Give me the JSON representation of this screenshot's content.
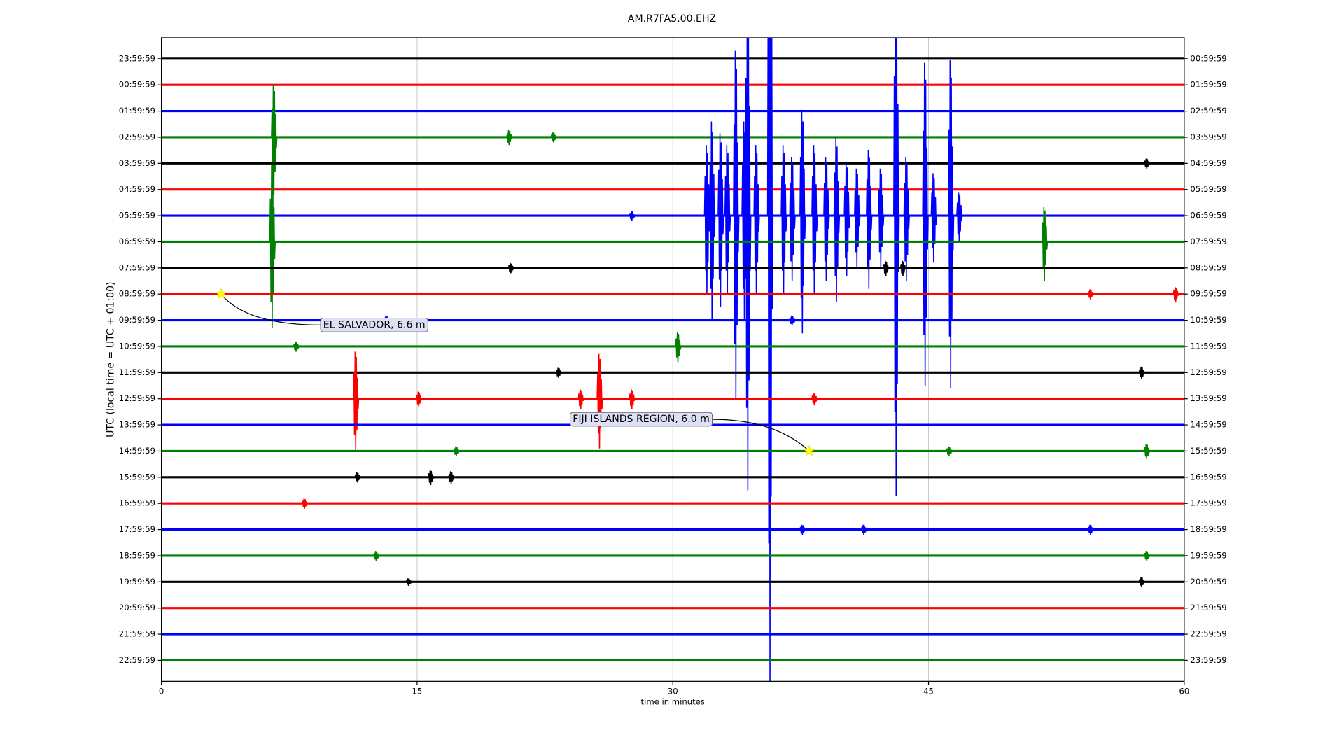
{
  "chart_data": {
    "type": "dayplot",
    "title": "AM.R7FA5.00.EHZ",
    "xlabel": "time in minutes",
    "ylabel": "UTC (local time = UTC + 01:00)",
    "xlim": [
      0,
      60
    ],
    "xticks": [
      0,
      15,
      30,
      45,
      60
    ],
    "grid": true,
    "ylim": [
      -0.8,
      23.8
    ],
    "yticks": [
      {
        "value": 0,
        "label": "23:59:59"
      },
      {
        "value": 1,
        "label": "00:59:59"
      },
      {
        "value": 2,
        "label": "01:59:59"
      },
      {
        "value": 3,
        "label": "02:59:59"
      },
      {
        "value": 4,
        "label": "03:59:59"
      },
      {
        "value": 5,
        "label": "04:59:59"
      },
      {
        "value": 6,
        "label": "05:59:59"
      },
      {
        "value": 7,
        "label": "06:59:59"
      },
      {
        "value": 8,
        "label": "07:59:59"
      },
      {
        "value": 9,
        "label": "08:59:59"
      },
      {
        "value": 10,
        "label": "09:59:59"
      },
      {
        "value": 11,
        "label": "10:59:59"
      },
      {
        "value": 12,
        "label": "11:59:59"
      },
      {
        "value": 13,
        "label": "12:59:59"
      },
      {
        "value": 14,
        "label": "13:59:59"
      },
      {
        "value": 15,
        "label": "14:59:59"
      },
      {
        "value": 16,
        "label": "15:59:59"
      },
      {
        "value": 17,
        "label": "16:59:59"
      },
      {
        "value": 18,
        "label": "17:59:59"
      },
      {
        "value": 19,
        "label": "18:59:59"
      },
      {
        "value": 20,
        "label": "19:59:59"
      },
      {
        "value": 21,
        "label": "20:59:59"
      },
      {
        "value": 22,
        "label": "21:59:59"
      },
      {
        "value": 23,
        "label": "22:59:59"
      }
    ],
    "y2ticks": [
      {
        "value": 0,
        "label": "00:59:59"
      },
      {
        "value": 1,
        "label": "01:59:59"
      },
      {
        "value": 2,
        "label": "02:59:59"
      },
      {
        "value": 3,
        "label": "03:59:59"
      },
      {
        "value": 4,
        "label": "04:59:59"
      },
      {
        "value": 5,
        "label": "05:59:59"
      },
      {
        "value": 6,
        "label": "06:59:59"
      },
      {
        "value": 7,
        "label": "07:59:59"
      },
      {
        "value": 8,
        "label": "08:59:59"
      },
      {
        "value": 9,
        "label": "09:59:59"
      },
      {
        "value": 10,
        "label": "10:59:59"
      },
      {
        "value": 11,
        "label": "11:59:59"
      },
      {
        "value": 12,
        "label": "12:59:59"
      },
      {
        "value": 13,
        "label": "13:59:59"
      },
      {
        "value": 14,
        "label": "14:59:59"
      },
      {
        "value": 15,
        "label": "15:59:59"
      },
      {
        "value": 16,
        "label": "16:59:59"
      },
      {
        "value": 17,
        "label": "17:59:59"
      },
      {
        "value": 18,
        "label": "18:59:59"
      },
      {
        "value": 19,
        "label": "19:59:59"
      },
      {
        "value": 20,
        "label": "20:59:59"
      },
      {
        "value": 21,
        "label": "21:59:59"
      },
      {
        "value": 22,
        "label": "22:59:59"
      },
      {
        "value": 23,
        "label": "23:59:59"
      }
    ],
    "rows": [
      {
        "color": "#000000",
        "spikes": []
      },
      {
        "color": "#ff0000",
        "spikes": []
      },
      {
        "color": "#0000ff",
        "spikes": []
      },
      {
        "color": "#008000",
        "spikes": [
          {
            "minute": 6.6,
            "amplitude": 2.2
          },
          {
            "minute": 20.4,
            "amplitude": 0.3
          },
          {
            "minute": 23.0,
            "amplitude": 0.2
          }
        ]
      },
      {
        "color": "#000000",
        "spikes": [
          {
            "minute": 57.8,
            "amplitude": 0.2
          }
        ]
      },
      {
        "color": "#ff0000",
        "spikes": []
      },
      {
        "color": "#0000ff",
        "spikes": [
          {
            "minute": 27.6,
            "amplitude": 0.2
          },
          {
            "minute": 32.0,
            "amplitude": 3
          },
          {
            "minute": 32.3,
            "amplitude": 4
          },
          {
            "minute": 32.8,
            "amplitude": 3.5
          },
          {
            "minute": 33.2,
            "amplitude": 3
          },
          {
            "minute": 33.7,
            "amplitude": 7
          },
          {
            "minute": 34.2,
            "amplitude": 4
          },
          {
            "minute": 34.4,
            "amplitude": 10.5
          },
          {
            "minute": 34.9,
            "amplitude": 3
          },
          {
            "minute": 35.7,
            "amplitude": 17.9
          },
          {
            "minute": 36.5,
            "amplitude": 3
          },
          {
            "minute": 37.0,
            "amplitude": 2.5
          },
          {
            "minute": 37.6,
            "amplitude": 4.5
          },
          {
            "minute": 38.3,
            "amplitude": 3
          },
          {
            "minute": 39.0,
            "amplitude": 2.5
          },
          {
            "minute": 39.6,
            "amplitude": 3.3
          },
          {
            "minute": 40.2,
            "amplitude": 2.3
          },
          {
            "minute": 40.8,
            "amplitude": 2
          },
          {
            "minute": 41.5,
            "amplitude": 2.8
          },
          {
            "minute": 42.2,
            "amplitude": 2
          },
          {
            "minute": 43.1,
            "amplitude": 10.7
          },
          {
            "minute": 43.7,
            "amplitude": 2.5
          },
          {
            "minute": 44.8,
            "amplitude": 6.5
          },
          {
            "minute": 45.3,
            "amplitude": 1.8
          },
          {
            "minute": 46.3,
            "amplitude": 6.6
          },
          {
            "minute": 46.8,
            "amplitude": 1
          }
        ]
      },
      {
        "color": "#008000",
        "spikes": [
          {
            "minute": 6.5,
            "amplitude": 3.3
          },
          {
            "minute": 51.8,
            "amplitude": 1.5
          }
        ]
      },
      {
        "color": "#000000",
        "spikes": [
          {
            "minute": 20.5,
            "amplitude": 0.2
          },
          {
            "minute": 42.5,
            "amplitude": 0.3
          },
          {
            "minute": 43.5,
            "amplitude": 0.3
          }
        ]
      },
      {
        "color": "#ff0000",
        "spikes": [
          {
            "minute": 54.5,
            "amplitude": 0.2
          },
          {
            "minute": 59.5,
            "amplitude": 0.3
          }
        ]
      },
      {
        "color": "#0000ff",
        "spikes": [
          {
            "minute": 13.2,
            "amplitude": 0.2
          },
          {
            "minute": 37.0,
            "amplitude": 0.2
          }
        ]
      },
      {
        "color": "#008000",
        "spikes": [
          {
            "minute": 7.9,
            "amplitude": 0.2
          },
          {
            "minute": 30.3,
            "amplitude": 0.6
          }
        ]
      },
      {
        "color": "#000000",
        "spikes": [
          {
            "minute": 23.3,
            "amplitude": 0.2
          },
          {
            "minute": 57.5,
            "amplitude": 0.25
          }
        ]
      },
      {
        "color": "#ff0000",
        "spikes": [
          {
            "minute": 11.4,
            "amplitude": 2
          },
          {
            "minute": 15.1,
            "amplitude": 0.3
          },
          {
            "minute": 24.6,
            "amplitude": 0.4
          },
          {
            "minute": 25.7,
            "amplitude": 1.9
          },
          {
            "minute": 27.6,
            "amplitude": 0.4
          },
          {
            "minute": 38.3,
            "amplitude": 0.25
          }
        ]
      },
      {
        "color": "#0000ff",
        "spikes": []
      },
      {
        "color": "#008000",
        "spikes": [
          {
            "minute": 17.3,
            "amplitude": 0.2
          },
          {
            "minute": 46.2,
            "amplitude": 0.2
          },
          {
            "minute": 57.8,
            "amplitude": 0.3
          }
        ]
      },
      {
        "color": "#000000",
        "spikes": [
          {
            "minute": 11.5,
            "amplitude": 0.2
          },
          {
            "minute": 15.8,
            "amplitude": 0.3
          },
          {
            "minute": 17.0,
            "amplitude": 0.25
          }
        ]
      },
      {
        "color": "#ff0000",
        "spikes": [
          {
            "minute": 8.4,
            "amplitude": 0.2
          }
        ]
      },
      {
        "color": "#0000ff",
        "spikes": [
          {
            "minute": 37.6,
            "amplitude": 0.2
          },
          {
            "minute": 41.2,
            "amplitude": 0.2
          },
          {
            "minute": 54.5,
            "amplitude": 0.2
          }
        ]
      },
      {
        "color": "#008000",
        "spikes": [
          {
            "minute": 12.6,
            "amplitude": 0.2
          },
          {
            "minute": 57.8,
            "amplitude": 0.2
          }
        ]
      },
      {
        "color": "#000000",
        "spikes": [
          {
            "minute": 14.5,
            "amplitude": 0.15
          },
          {
            "minute": 57.5,
            "amplitude": 0.2
          }
        ]
      },
      {
        "color": "#ff0000",
        "spikes": []
      },
      {
        "color": "#0000ff",
        "spikes": []
      },
      {
        "color": "#008000",
        "spikes": []
      }
    ],
    "events": [
      {
        "text": "EL SALVADOR, 6.6 m",
        "row": 9,
        "minute": 3.5
      },
      {
        "text": "FIJI ISLANDS REGION, 6.0 m",
        "row": 15,
        "minute": 38.0
      }
    ]
  }
}
